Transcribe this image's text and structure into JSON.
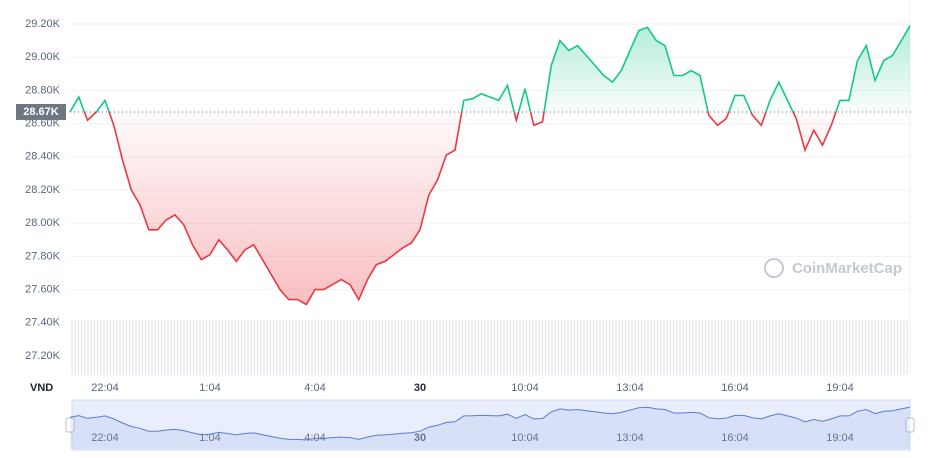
{
  "chart_data": {
    "type": "line",
    "values": [
      28670,
      28760,
      28620,
      28670,
      28740,
      28590,
      28380,
      28200,
      28110,
      27960,
      27960,
      28020,
      28050,
      27990,
      27870,
      27780,
      27810,
      27900,
      27840,
      27770,
      27840,
      27870,
      27780,
      27690,
      27600,
      27540,
      27540,
      27510,
      27600,
      27600,
      27630,
      27660,
      27630,
      27540,
      27660,
      27750,
      27770,
      27810,
      27850,
      27880,
      27960,
      28170,
      28260,
      28410,
      28440,
      28740,
      28750,
      28780,
      28760,
      28740,
      28830,
      28620,
      28810,
      28590,
      28610,
      28950,
      29100,
      29040,
      29070,
      29010,
      28950,
      28890,
      28850,
      28920,
      29040,
      29160,
      29180,
      29100,
      29070,
      28890,
      28890,
      28920,
      28890,
      28650,
      28590,
      28630,
      28770,
      28770,
      28650,
      28590,
      28740,
      28850,
      28740,
      28630,
      28440,
      28560,
      28470,
      28590,
      28740,
      28740,
      28980,
      29070,
      28860,
      28980,
      29010,
      29100,
      29190
    ],
    "xlim": [
      0,
      96
    ],
    "xticks": [
      {
        "value": 4,
        "label": "22:04"
      },
      {
        "value": 16,
        "label": "1:04"
      },
      {
        "value": 28,
        "label": "4:04"
      },
      {
        "value": 40,
        "label": "30"
      },
      {
        "value": 52,
        "label": "10:04"
      },
      {
        "value": 64,
        "label": "13:04"
      },
      {
        "value": 76,
        "label": "16:04"
      },
      {
        "value": 88,
        "label": "19:04"
      }
    ],
    "ylim": [
      27100,
      29300
    ],
    "yticks": [
      {
        "value": 27200,
        "label": "27.20K"
      },
      {
        "value": 27400,
        "label": "27.40K"
      },
      {
        "value": 27600,
        "label": "27.60K"
      },
      {
        "value": 27800,
        "label": "27.80K"
      },
      {
        "value": 28000,
        "label": "28.00K"
      },
      {
        "value": 28200,
        "label": "28.20K"
      },
      {
        "value": 28400,
        "label": "28.40K"
      },
      {
        "value": 28600,
        "label": "28.60K"
      },
      {
        "value": 28800,
        "label": "28.80K"
      },
      {
        "value": 29000,
        "label": "29.00K"
      },
      {
        "value": 29200,
        "label": "29.20K"
      }
    ],
    "baseline": {
      "value": 28670,
      "label": "28.67K"
    },
    "y_axis_label": "VND",
    "watermark": "CoinMarketCap",
    "up_color": "#16c784",
    "down_color": "#ea3943",
    "navigator_color": "#5b7bd5",
    "grid": true
  }
}
